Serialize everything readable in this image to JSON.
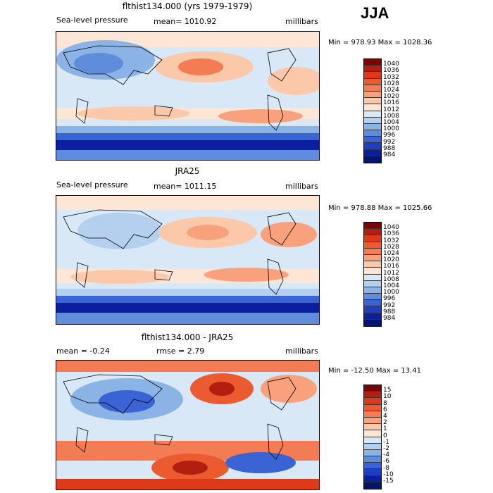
{
  "season": "JJA",
  "panels": [
    {
      "title": "flthist134.000 (yrs 1979-1979)",
      "left_label": "Sea-level pressure",
      "mid_label": "mean= 1010.92",
      "units": "millibars",
      "minmax": "Min = 978.93 Max = 1028.36",
      "levels": [
        "1040",
        "1036",
        "1032",
        "1028",
        "1024",
        "1020",
        "1016",
        "1012",
        "1008",
        "1004",
        "1000",
        "996",
        "992",
        "988",
        "984"
      ],
      "colors": [
        "#7a0403",
        "#b21f10",
        "#dc3a18",
        "#ec5a30",
        "#f47c54",
        "#f9a07c",
        "#fcc8aa",
        "#fde6d6",
        "#d8e8f6",
        "#b5d0ef",
        "#8cb3e6",
        "#5f8ddb",
        "#3a63d3",
        "#1e3fc4",
        "#0b1f9e",
        "#05156e"
      ]
    },
    {
      "title": "JRA25",
      "left_label": "Sea-level pressure",
      "mid_label": "mean= 1011.15",
      "units": "millibars",
      "minmax": "Min = 978.88 Max = 1025.66",
      "levels": [
        "1040",
        "1036",
        "1032",
        "1028",
        "1024",
        "1020",
        "1016",
        "1012",
        "1008",
        "1004",
        "1000",
        "996",
        "992",
        "988",
        "984"
      ],
      "colors": [
        "#7a0403",
        "#b21f10",
        "#dc3a18",
        "#ec5a30",
        "#f47c54",
        "#f9a07c",
        "#fcc8aa",
        "#fde6d6",
        "#d8e8f6",
        "#b5d0ef",
        "#8cb3e6",
        "#5f8ddb",
        "#3a63d3",
        "#1e3fc4",
        "#0b1f9e",
        "#05156e"
      ]
    },
    {
      "title": "flthist134.000 - JRA25",
      "left_label": "mean =   -0.24",
      "mid_label": "rmse =    2.79",
      "units": "millibars",
      "minmax": "Min = -12.50 Max =  13.41",
      "levels": [
        "15",
        "10",
        "8",
        "6",
        "4",
        "2",
        "1",
        "0",
        "-1",
        "-2",
        "-4",
        "-6",
        "-8",
        "-10",
        "-15"
      ],
      "colors": [
        "#7a0403",
        "#b21f10",
        "#dc3a18",
        "#ec5a30",
        "#f47c54",
        "#f9a07c",
        "#fcc8aa",
        "#fde6d6",
        "#d8e8f6",
        "#b5d0ef",
        "#8cb3e6",
        "#5f8ddb",
        "#3a63d3",
        "#1e3fc4",
        "#0b1f9e",
        "#05156e"
      ]
    }
  ]
}
